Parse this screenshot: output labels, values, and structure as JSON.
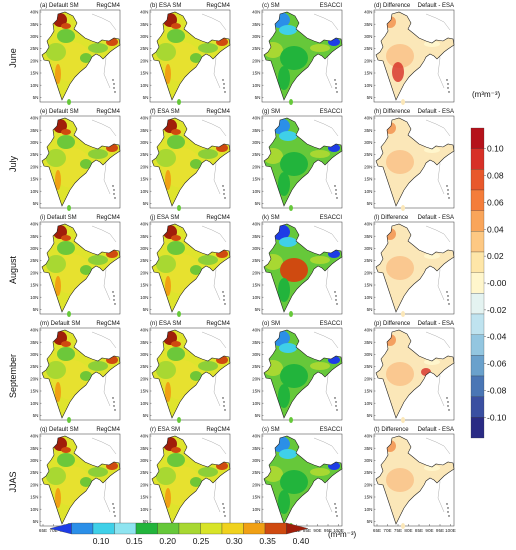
{
  "rows": [
    {
      "label": "June",
      "panels": [
        {
          "type": "default",
          "title": "(a) Default SM",
          "source": "RegCM4"
        },
        {
          "type": "esa",
          "title": "(b) ESA SM",
          "source": "RegCM4"
        },
        {
          "type": "sm",
          "title": "(c) SM",
          "source": "ESACCI"
        },
        {
          "type": "diff",
          "title": "(d) Difference",
          "source": "Default - ESA"
        }
      ]
    },
    {
      "label": "July",
      "panels": [
        {
          "type": "default",
          "title": "(e) Default SM",
          "source": "RegCM4"
        },
        {
          "type": "esa",
          "title": "(f) ESA SM",
          "source": "RegCM4"
        },
        {
          "type": "sm",
          "title": "(g) SM",
          "source": "ESACCI"
        },
        {
          "type": "diff",
          "title": "(h) Difference",
          "source": "Default - ESA"
        }
      ]
    },
    {
      "label": "August",
      "panels": [
        {
          "type": "default",
          "title": "(i) Default SM",
          "source": "RegCM4"
        },
        {
          "type": "esa",
          "title": "(j) ESA SM",
          "source": "RegCM4"
        },
        {
          "type": "sm",
          "title": "(k) SM",
          "source": "ESACCI"
        },
        {
          "type": "diff",
          "title": "(l) Difference",
          "source": "Default - ESA"
        }
      ]
    },
    {
      "label": "September",
      "panels": [
        {
          "type": "default",
          "title": "(m) Default SM",
          "source": "RegCM4"
        },
        {
          "type": "esa",
          "title": "(n) ESA SM",
          "source": "RegCM4"
        },
        {
          "type": "sm",
          "title": "(o) SM",
          "source": "ESACCI"
        },
        {
          "type": "diff",
          "title": "(p) Difference",
          "source": "Default - ESA"
        }
      ]
    },
    {
      "label": "JJAS",
      "panels": [
        {
          "type": "default",
          "title": "(q) Default SM",
          "source": "RegCM4"
        },
        {
          "type": "esa",
          "title": "(r) ESA SM",
          "source": "RegCM4"
        },
        {
          "type": "sm",
          "title": "(s) SM",
          "source": "ESACCI"
        },
        {
          "type": "diff",
          "title": "(t) Difference",
          "source": "Default - ESA"
        }
      ]
    }
  ],
  "lat_ticks": [
    "40N",
    "35N",
    "30N",
    "25N",
    "20N",
    "15N",
    "10N",
    "5N"
  ],
  "lon_ticks": [
    "65E",
    "70E",
    "75E",
    "80E",
    "85E",
    "90E",
    "95E",
    "100E"
  ],
  "sm_colorbar": {
    "unit": "(m³m⁻³)",
    "labels": [
      "0.10",
      "0.15",
      "0.20",
      "0.25",
      "0.30",
      "0.35",
      "0.40"
    ],
    "colors": [
      "#1e3ce6",
      "#2b8fe8",
      "#3fd0e8",
      "#8ee4f0",
      "#22b43c",
      "#66c83a",
      "#a8d832",
      "#d8e428",
      "#f0d21e",
      "#f0a014",
      "#cf4a10",
      "#a01e0a"
    ]
  },
  "diff_colorbar": {
    "unit": "(m³m⁻³)",
    "labels": [
      "0.10",
      "0.08",
      "0.06",
      "0.04",
      "0.02",
      "-0.00",
      "-0.02",
      "-0.04",
      "-0.06",
      "-0.08",
      "-0.10"
    ],
    "colors": [
      "#b5121b",
      "#d73027",
      "#e8582c",
      "#f47d3a",
      "#f9a55a",
      "#fdc883",
      "#fee6a8",
      "#fff6cc",
      "#e4f3f1",
      "#bfe3ef",
      "#93c6e0",
      "#6aa1cc",
      "#4a76b5",
      "#3a4fa1",
      "#2a2b84"
    ]
  }
}
